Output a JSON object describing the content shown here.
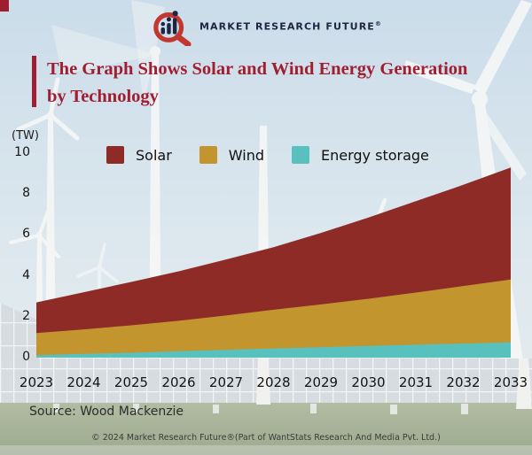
{
  "logo": {
    "text": "MARKET RESEARCH FUTURE",
    "registered": "®"
  },
  "accent_color": "#9e1e30",
  "title": {
    "line1": "The Graph Shows Solar and Wind Energy Generation",
    "line2": "by Technology",
    "color": "#a01e30"
  },
  "axis_unit": "(TW)",
  "legend": [
    {
      "label": "Solar",
      "color": "#8e2b26"
    },
    {
      "label": "Wind",
      "color": "#c3952f"
    },
    {
      "label": "Energy storage",
      "color": "#58c1be"
    }
  ],
  "chart_data": {
    "type": "area",
    "stacked": true,
    "title": "The Graph Shows Solar and Wind Energy Generation by Technology",
    "ylabel": "(TW)",
    "xlabel": "",
    "ylim": [
      0,
      10
    ],
    "yticks": [
      0,
      2,
      4,
      6,
      8,
      10
    ],
    "grid": false,
    "legend_position": "top",
    "categories": [
      "2023",
      "2024",
      "2025",
      "2026",
      "2027",
      "2028",
      "2029",
      "2030",
      "2031",
      "2032",
      "2033"
    ],
    "series": [
      {
        "name": "Energy storage",
        "color": "#58c1be",
        "values": [
          0.12,
          0.18,
          0.24,
          0.31,
          0.38,
          0.45,
          0.51,
          0.57,
          0.63,
          0.69,
          0.75
        ]
      },
      {
        "name": "Wind",
        "color": "#c3952f",
        "values": [
          1.08,
          1.2,
          1.34,
          1.49,
          1.68,
          1.89,
          2.09,
          2.31,
          2.55,
          2.81,
          3.07
        ]
      },
      {
        "name": "Solar",
        "color": "#8e2b26",
        "values": [
          1.5,
          1.82,
          2.12,
          2.42,
          2.74,
          3.06,
          3.5,
          3.97,
          4.47,
          4.95,
          5.48
        ]
      }
    ],
    "stacked_totals": [
      2.7,
      3.2,
      3.7,
      4.22,
      4.8,
      5.4,
      6.1,
      6.85,
      7.65,
      8.45,
      9.3
    ]
  },
  "source": "Source: Wood Mackenzie",
  "footer": "© 2024 Market Research Future®(Part of WantStats Research And Media Pvt. Ltd.)"
}
